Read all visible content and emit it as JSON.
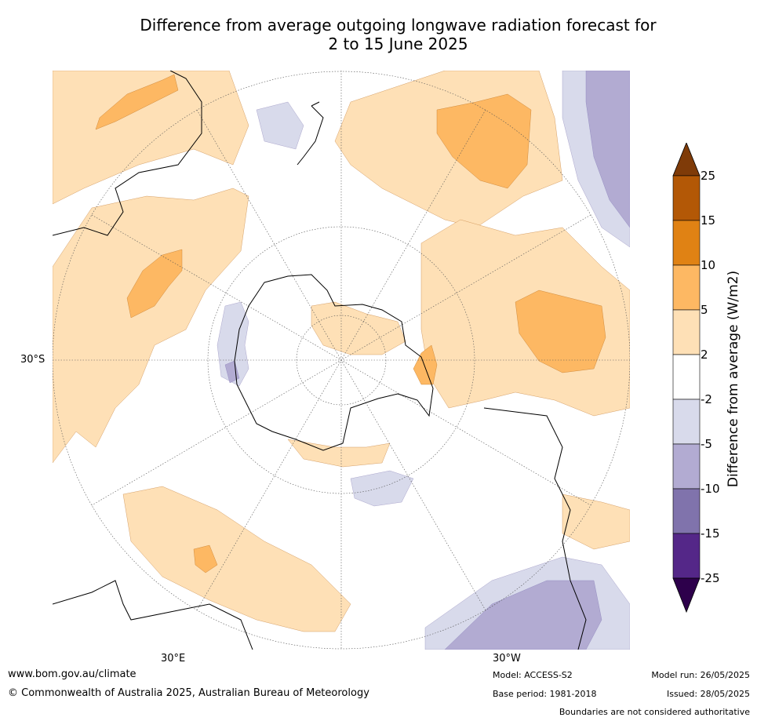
{
  "title_line1": "Difference from average outgoing longwave radiation forecast for",
  "title_line2": "2 to 15 June 2025",
  "map": {
    "labels": {
      "lat_30s": "30°S",
      "lon_30e": "30°E",
      "lon_30w": "30°W"
    }
  },
  "colorbar": {
    "title": "Difference from average (W/m2)",
    "ticks": [
      "25",
      "15",
      "10",
      "5",
      "2",
      "-2",
      "-5",
      "-10",
      "-15",
      "-25"
    ],
    "colors": {
      "above_25": "#7f3b08",
      "15_to_25": "#b35806",
      "10_to_15": "#e08214",
      "5_to_10": "#fdb863",
      "2_to_5": "#fee0b6",
      "neutral": "#ffffff",
      "m5_to_m2": "#d8daeb",
      "m10_to_m5": "#b2abd2",
      "m15_to_m10": "#8073ac",
      "m25_to_m15": "#542788",
      "below_m25": "#2d004b"
    }
  },
  "footer": {
    "website": "www.bom.gov.au/climate",
    "copyright": "© Commonwealth of Australia 2025, Australian Bureau of Meteorology",
    "model": "Model: ACCESS-S2",
    "base_period": "Base period: 1981-2018",
    "model_run": "Model run: 26/05/2025",
    "issued": "Issued: 28/05/2025",
    "disclaimer": "Boundaries are not considered authoritative"
  }
}
